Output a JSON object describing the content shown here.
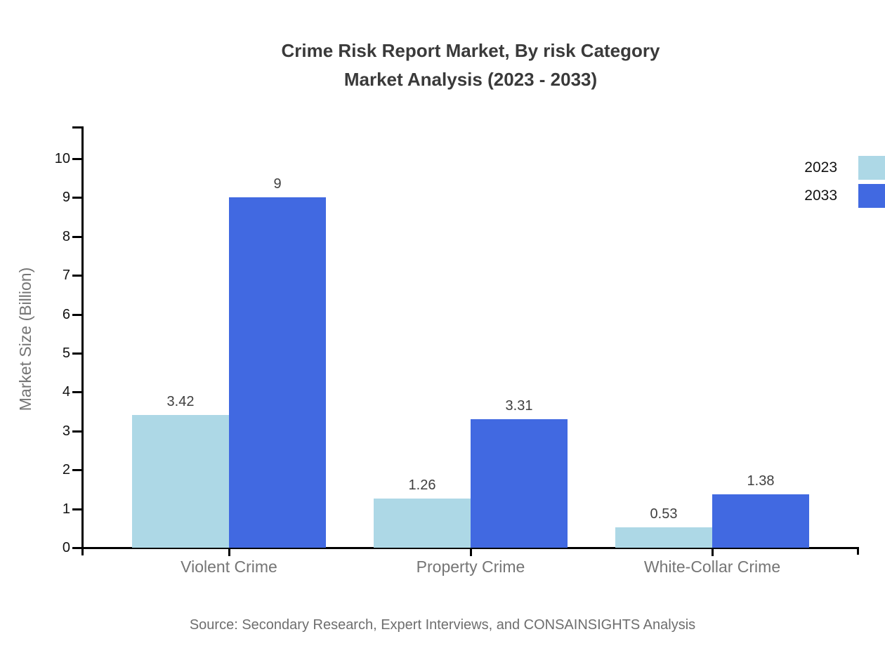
{
  "title": {
    "line1": "Crime Risk Report Market, By risk Category",
    "line2": "Market Analysis (2023 - 2033)"
  },
  "source": "Source: Secondary Research, Expert Interviews, and CONSAINSIGHTS Analysis",
  "colors": {
    "axis": "#000000",
    "title_text": "#3a3a3a",
    "muted_text": "#757575",
    "value_text": "#3f3f3f",
    "source_text": "#6e6e6e",
    "series_2023": "#add8e6",
    "series_2033": "#4169e1"
  },
  "chart_data": {
    "type": "bar",
    "title": "Crime Risk Report Market, By risk Category Market Analysis (2023 - 2033)",
    "categories": [
      "Violent Crime",
      "Property Crime",
      "White-Collar Crime"
    ],
    "series": [
      {
        "name": "2023",
        "color": "#add8e6",
        "values": [
          3.42,
          1.26,
          0.53
        ],
        "labels": [
          "3.42",
          "1.26",
          "0.53"
        ]
      },
      {
        "name": "2033",
        "color": "#4169e1",
        "values": [
          9,
          3.31,
          1.38
        ],
        "labels": [
          "9",
          "3.31",
          "1.38"
        ]
      }
    ],
    "xlabel": "",
    "ylabel": "Market Size (Billion)",
    "ylim": [
      0,
      10
    ],
    "ytick_step": 1,
    "ytick_labels": [
      "0",
      "1",
      "2",
      "3",
      "4",
      "5",
      "6",
      "7",
      "8",
      "9",
      "10"
    ],
    "grid": false,
    "legend_position": "top-right",
    "value_labels_shown": true
  }
}
